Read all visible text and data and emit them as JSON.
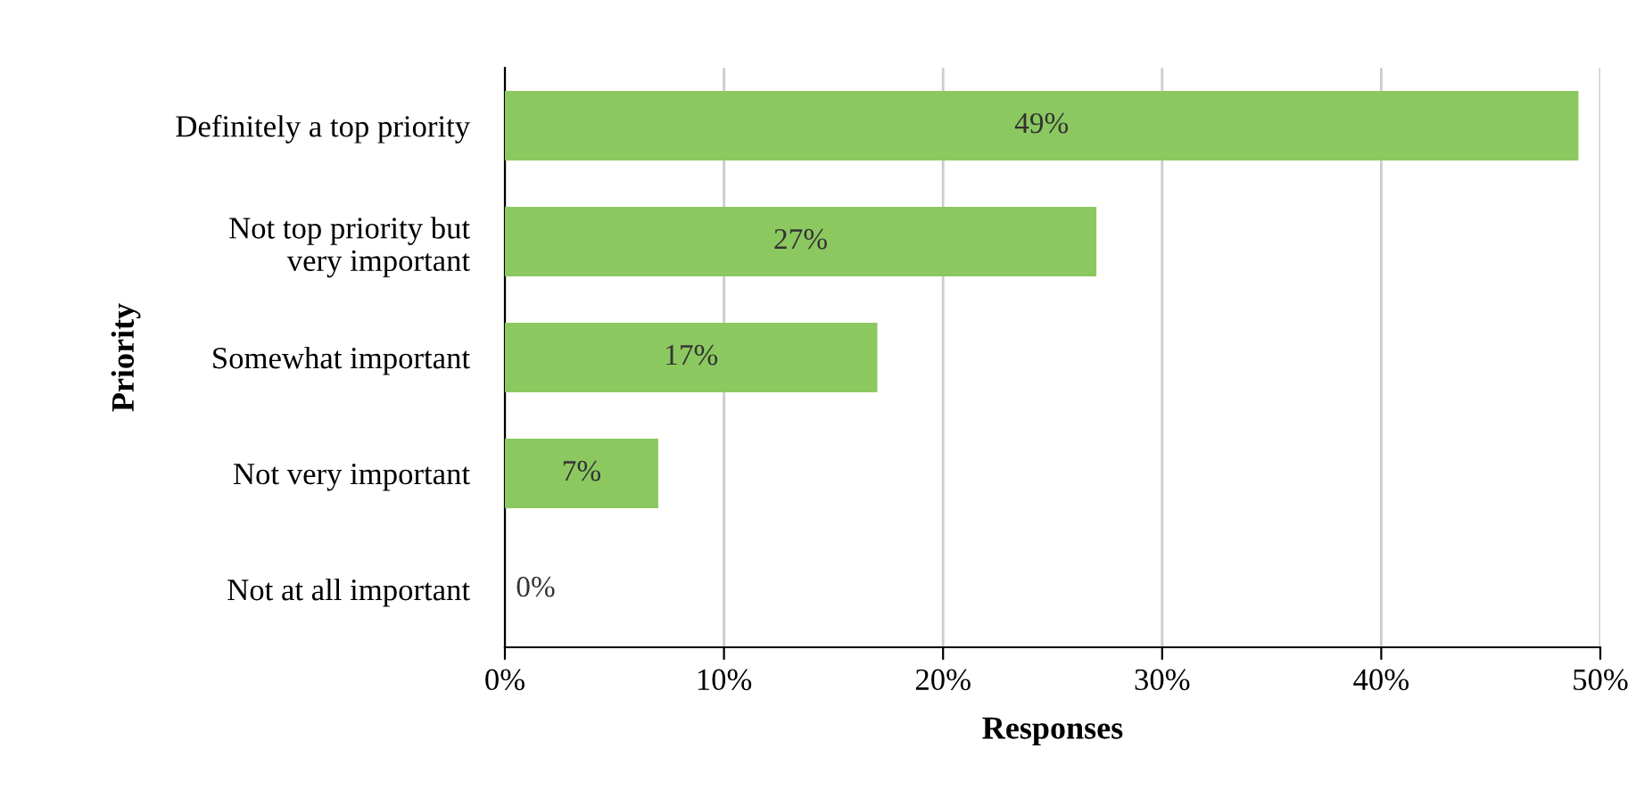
{
  "chart_data": {
    "type": "bar",
    "orientation": "horizontal",
    "ylabel": "Priority",
    "xlabel": "Responses",
    "categories": [
      "Definitely a top priority",
      "Not top priority but\nvery important",
      "Somewhat important",
      "Not very important",
      "Not at all important"
    ],
    "values": [
      49,
      27,
      17,
      7,
      0
    ],
    "value_labels": [
      "49%",
      "27%",
      "17%",
      "7%",
      "0%"
    ],
    "color": "#8cc860",
    "xlim": [
      0,
      50
    ],
    "xticks": [
      {
        "value": 0,
        "label": "0%"
      },
      {
        "value": 10,
        "label": "10%"
      },
      {
        "value": 20,
        "label": "20%"
      },
      {
        "value": 30,
        "label": "30%"
      },
      {
        "value": 40,
        "label": "40%"
      },
      {
        "value": 50,
        "label": "50%"
      }
    ],
    "grid": "x"
  }
}
